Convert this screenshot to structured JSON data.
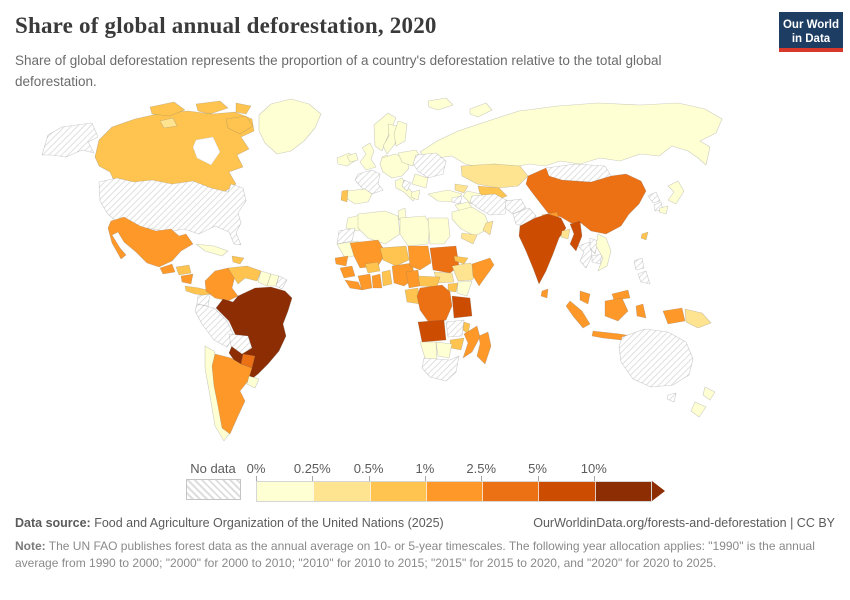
{
  "header": {
    "title": "Share of global annual deforestation, 2020",
    "subtitle": "Share of global deforestation represents the proportion of a country's deforestation relative to the total global deforestation.",
    "logo_line1": "Our World",
    "logo_line2": "in Data",
    "logo_bg": "#1d3d63",
    "logo_stripe": "#d7382a"
  },
  "legend": {
    "no_data_label": "No data",
    "tick_labels": [
      "0%",
      "0.25%",
      "0.5%",
      "1%",
      "2.5%",
      "5%",
      "10%"
    ]
  },
  "footer": {
    "source_label": "Data source:",
    "source_text": " Food and Agriculture Organization of the United Nations (2025)",
    "link_text": "OurWorldinData.org/forests-and-deforestation | CC BY",
    "note_label": "Note:",
    "note_text": " The UN FAO publishes forest data as the annual average on 10- or 5-year timescales. The following year allocation applies: \"1990\" is the annual average from 1990 to 2000; \"2000\" for 2000 to 2010; \"2010\" for 2010 to 2015; \"2015\" for 2015 to 2020, and \"2020\" for 2020 to 2025."
  },
  "chart_data": {
    "type": "choropleth_map",
    "title": "Share of global annual deforestation, 2020",
    "unit": "%",
    "bins": [
      "0-0.25%",
      "0.25-0.5%",
      "0.5-1%",
      "1-2.5%",
      "2.5-5%",
      "5-10%",
      ">10%"
    ],
    "bin_colors": [
      "#ffffd4",
      "#fee391",
      "#fec44f",
      "#fe9929",
      "#ec7014",
      "#cc4c02",
      "#8c2d04"
    ],
    "no_data_style": "gray-diagonal-hatch",
    "countries": {
      "alaska": "No data",
      "canada": "0.5-1%",
      "canadian_arctic": "0.5-1%",
      "arctic_island_pale": "0.25-0.5%",
      "greenland": "0-0.25%",
      "iceland": "0-0.25%",
      "usa": "No data",
      "mexico": "1-2.5%",
      "guatemala": "1-2.5%",
      "honduras": "0.5-1%",
      "nicaragua": "1-2.5%",
      "costa_rica_panama": "0.5-1%",
      "cuba": "0-0.25%",
      "hispaniola": "0.5-1%",
      "colombia": "1-2.5%",
      "venezuela": "0.5-1%",
      "guyana": "0-0.25%",
      "suriname": "0-0.25%",
      "french_guiana": "No data",
      "ecuador": "No data",
      "peru": "No data",
      "brazil": ">10%",
      "bolivia": "No data",
      "paraguay": "2.5-5%",
      "chile": "0-0.25%",
      "argentina": "1-2.5%",
      "uruguay": "0-0.25%",
      "ireland": "0-0.25%",
      "uk": "0-0.25%",
      "norway": "0-0.25%",
      "sweden": "0-0.25%",
      "finland": "0-0.25%",
      "denmark": "0-0.25%",
      "france": "No data",
      "spain": "0-0.25%",
      "portugal": "0.5-1%",
      "central_europe": "0-0.25%",
      "italy": "0-0.25%",
      "poland_baltics": "0-0.25%",
      "ukraine_belarus": "No data",
      "romania_bulgaria": "0-0.25%",
      "west_balkans": "No data",
      "greece": "0-0.25%",
      "turkey": "0-0.25%",
      "caucasus": "0.25-0.5%",
      "russia": "0-0.25%",
      "svalbard": "0-0.25%",
      "novaya_zemlya": "0-0.25%",
      "kazakhstan": "0.25-0.5%",
      "uzbekistan": "0.5-1%",
      "turkmenistan": "0-0.25%",
      "mongolia": "No data",
      "syria": "No data",
      "iraq": "0-0.25%",
      "saudi_arabia": "0-0.25%",
      "yemen": "0.25-0.5%",
      "oman": "0.25-0.5%",
      "iran": "No data",
      "afghanistan": "No data",
      "pakistan": "No data",
      "india": "5-10%",
      "nepal": "1-2.5%",
      "bangladesh": "0.25-0.5%",
      "sri_lanka": "1-2.5%",
      "myanmar": "5-10%",
      "china": "2.5-5%",
      "north_korea": "No data",
      "south_korea": "No data",
      "japan": "0-0.25%",
      "taiwan": "0.5-1%",
      "thailand": "No data",
      "laos": "No data",
      "cambodia": "No data",
      "vietnam": "0-0.25%",
      "malaysia": "1-2.5%",
      "philippines": "No data",
      "indonesia": "1-2.5%",
      "papua_new_guinea": "0.25-0.5%",
      "australia": "No data",
      "new_zealand": "0-0.25%",
      "morocco": "0-0.25%",
      "western_sahara": "No data",
      "algeria": "0-0.25%",
      "tunisia": "0-0.25%",
      "libya": "0-0.25%",
      "egypt": "0-0.25%",
      "mauritania": "0-0.25%",
      "mali": "1-2.5%",
      "senegal": "1-2.5%",
      "guinea": "1-2.5%",
      "sierra_leone_liberia": "1-2.5%",
      "ivory_coast": "1-2.5%",
      "ghana": "1-2.5%",
      "burkina_faso": "0.5-1%",
      "togo_benin": "0.5-1%",
      "niger": "0.5-1%",
      "nigeria": "1-2.5%",
      "chad": "1-2.5%",
      "sudan": "2.5-5%",
      "eritrea": "0.5-1%",
      "ethiopia": "0.25-0.5%",
      "somalia": "1-2.5%",
      "south_sudan": "0.25-0.5%",
      "cameroon": "1-2.5%",
      "central_african_republic": "0.5-1%",
      "uganda": "0.5-1%",
      "kenya": "0-0.25%",
      "gabon_congo": "0.5-1%",
      "dr_congo": "2.5-5%",
      "tanzania": "5-10%",
      "angola": "5-10%",
      "zambia": "No data",
      "malawi": "0.5-1%",
      "mozambique": "1-2.5%",
      "zimbabwe": "0.5-1%",
      "botswana": "0-0.25%",
      "namibia": "0-0.25%",
      "south_africa": "No data",
      "madagascar": "1-2.5%"
    }
  }
}
